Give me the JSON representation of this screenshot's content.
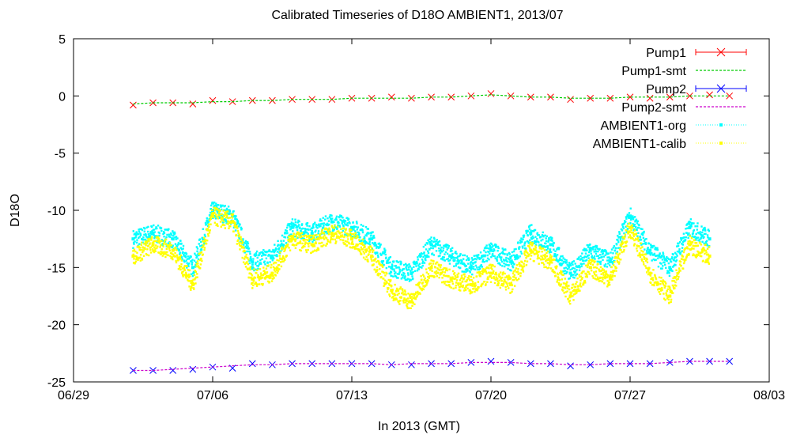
{
  "chart_data": {
    "type": "scatter",
    "title": "Calibrated Timeseries of D18O AMBIENT1, 2013/07",
    "xlabel": "In 2013 (GMT)",
    "ylabel": "D18O",
    "xlim": [
      "2013-06-29",
      "2013-08-03"
    ],
    "ylim": [
      -25,
      5
    ],
    "x_ticks": [
      "06/29",
      "07/06",
      "07/13",
      "07/20",
      "07/27",
      "08/03"
    ],
    "y_ticks": [
      5,
      0,
      -5,
      -10,
      -15,
      -20,
      -25
    ],
    "grid": false,
    "legend_position": "top-right",
    "colors": {
      "Pump1": "#ff0000",
      "Pump1-smt": "#00cc00",
      "Pump2": "#0000ff",
      "Pump2-smt": "#cc00cc",
      "AMBIENT1-org": "#00ffff",
      "AMBIENT1-calib": "#ffff00"
    },
    "series": [
      {
        "name": "Pump1",
        "marker": "x",
        "x": [
          "2013-07-02",
          "2013-07-03",
          "2013-07-04",
          "2013-07-05",
          "2013-07-06",
          "2013-07-07",
          "2013-07-08",
          "2013-07-09",
          "2013-07-10",
          "2013-07-11",
          "2013-07-12",
          "2013-07-13",
          "2013-07-14",
          "2013-07-15",
          "2013-07-16",
          "2013-07-17",
          "2013-07-18",
          "2013-07-19",
          "2013-07-20",
          "2013-07-21",
          "2013-07-22",
          "2013-07-23",
          "2013-07-24",
          "2013-07-25",
          "2013-07-26",
          "2013-07-27",
          "2013-07-28",
          "2013-07-29",
          "2013-07-30",
          "2013-07-31",
          "2013-08-01"
        ],
        "y": [
          -0.8,
          -0.6,
          -0.6,
          -0.7,
          -0.4,
          -0.5,
          -0.4,
          -0.4,
          -0.3,
          -0.3,
          -0.3,
          -0.2,
          -0.2,
          -0.1,
          -0.2,
          -0.1,
          -0.1,
          0.0,
          0.2,
          0.0,
          -0.1,
          -0.1,
          -0.3,
          -0.2,
          -0.2,
          -0.1,
          -0.2,
          -0.1,
          0.0,
          0.1,
          0.0
        ]
      },
      {
        "name": "Pump1-smt",
        "marker": "line",
        "x": [
          "2013-07-02",
          "2013-07-03",
          "2013-07-04",
          "2013-07-05",
          "2013-07-06",
          "2013-07-07",
          "2013-07-08",
          "2013-07-09",
          "2013-07-10",
          "2013-07-11",
          "2013-07-12",
          "2013-07-13",
          "2013-07-14",
          "2013-07-15",
          "2013-07-16",
          "2013-07-17",
          "2013-07-18",
          "2013-07-19",
          "2013-07-20",
          "2013-07-21",
          "2013-07-22",
          "2013-07-23",
          "2013-07-24",
          "2013-07-25",
          "2013-07-26",
          "2013-07-27",
          "2013-07-28",
          "2013-07-29",
          "2013-07-30",
          "2013-07-31",
          "2013-08-01"
        ],
        "y": [
          -0.7,
          -0.6,
          -0.6,
          -0.6,
          -0.5,
          -0.5,
          -0.4,
          -0.4,
          -0.3,
          -0.3,
          -0.3,
          -0.2,
          -0.2,
          -0.2,
          -0.2,
          -0.1,
          -0.1,
          0.0,
          0.1,
          0.0,
          -0.1,
          -0.1,
          -0.2,
          -0.2,
          -0.2,
          -0.1,
          -0.1,
          -0.1,
          0.0,
          0.0,
          0.0
        ]
      },
      {
        "name": "Pump2",
        "marker": "x",
        "x": [
          "2013-07-02",
          "2013-07-03",
          "2013-07-04",
          "2013-07-05",
          "2013-07-06",
          "2013-07-07",
          "2013-07-08",
          "2013-07-09",
          "2013-07-10",
          "2013-07-11",
          "2013-07-12",
          "2013-07-13",
          "2013-07-14",
          "2013-07-15",
          "2013-07-16",
          "2013-07-17",
          "2013-07-18",
          "2013-07-19",
          "2013-07-20",
          "2013-07-21",
          "2013-07-22",
          "2013-07-23",
          "2013-07-24",
          "2013-07-25",
          "2013-07-26",
          "2013-07-27",
          "2013-07-28",
          "2013-07-29",
          "2013-07-30",
          "2013-07-31",
          "2013-08-01"
        ],
        "y": [
          -24.0,
          -24.0,
          -24.0,
          -23.9,
          -23.7,
          -23.8,
          -23.4,
          -23.5,
          -23.4,
          -23.4,
          -23.4,
          -23.4,
          -23.4,
          -23.5,
          -23.5,
          -23.4,
          -23.4,
          -23.3,
          -23.2,
          -23.3,
          -23.4,
          -23.4,
          -23.6,
          -23.5,
          -23.4,
          -23.4,
          -23.4,
          -23.3,
          -23.2,
          -23.2,
          -23.2
        ]
      },
      {
        "name": "Pump2-smt",
        "marker": "line",
        "x": [
          "2013-07-02",
          "2013-07-03",
          "2013-07-04",
          "2013-07-05",
          "2013-07-06",
          "2013-07-07",
          "2013-07-08",
          "2013-07-09",
          "2013-07-10",
          "2013-07-11",
          "2013-07-12",
          "2013-07-13",
          "2013-07-14",
          "2013-07-15",
          "2013-07-16",
          "2013-07-17",
          "2013-07-18",
          "2013-07-19",
          "2013-07-20",
          "2013-07-21",
          "2013-07-22",
          "2013-07-23",
          "2013-07-24",
          "2013-07-25",
          "2013-07-26",
          "2013-07-27",
          "2013-07-28",
          "2013-07-29",
          "2013-07-30",
          "2013-07-31",
          "2013-08-01"
        ],
        "y": [
          -24.0,
          -24.0,
          -23.9,
          -23.8,
          -23.7,
          -23.6,
          -23.5,
          -23.5,
          -23.4,
          -23.4,
          -23.4,
          -23.4,
          -23.4,
          -23.5,
          -23.4,
          -23.4,
          -23.4,
          -23.3,
          -23.3,
          -23.3,
          -23.4,
          -23.4,
          -23.5,
          -23.5,
          -23.4,
          -23.4,
          -23.4,
          -23.3,
          -23.2,
          -23.2,
          -23.2
        ]
      },
      {
        "name": "AMBIENT1-org",
        "marker": "dots",
        "x": [
          "2013-07-02",
          "2013-07-03",
          "2013-07-04",
          "2013-07-05",
          "2013-07-06",
          "2013-07-07",
          "2013-07-08",
          "2013-07-09",
          "2013-07-10",
          "2013-07-11",
          "2013-07-12",
          "2013-07-13",
          "2013-07-14",
          "2013-07-15",
          "2013-07-16",
          "2013-07-17",
          "2013-07-18",
          "2013-07-19",
          "2013-07-20",
          "2013-07-21",
          "2013-07-22",
          "2013-07-23",
          "2013-07-24",
          "2013-07-25",
          "2013-07-26",
          "2013-07-27",
          "2013-07-28",
          "2013-07-29",
          "2013-07-30",
          "2013-07-31"
        ],
        "y": [
          -12.5,
          -12.0,
          -12.5,
          -15.0,
          -10.0,
          -10.5,
          -14.5,
          -14.0,
          -11.5,
          -12.0,
          -11.0,
          -11.5,
          -12.5,
          -15.0,
          -15.5,
          -13.0,
          -14.0,
          -15.0,
          -13.5,
          -14.5,
          -12.0,
          -13.0,
          -15.5,
          -13.5,
          -14.5,
          -10.5,
          -13.5,
          -15.0,
          -11.5,
          -12.5
        ]
      },
      {
        "name": "AMBIENT1-calib",
        "marker": "dots",
        "x": [
          "2013-07-02",
          "2013-07-03",
          "2013-07-04",
          "2013-07-05",
          "2013-07-06",
          "2013-07-07",
          "2013-07-08",
          "2013-07-09",
          "2013-07-10",
          "2013-07-11",
          "2013-07-12",
          "2013-07-13",
          "2013-07-14",
          "2013-07-15",
          "2013-07-16",
          "2013-07-17",
          "2013-07-18",
          "2013-07-19",
          "2013-07-20",
          "2013-07-21",
          "2013-07-22",
          "2013-07-23",
          "2013-07-24",
          "2013-07-25",
          "2013-07-26",
          "2013-07-27",
          "2013-07-28",
          "2013-07-29",
          "2013-07-30",
          "2013-07-31"
        ],
        "y": [
          -14.0,
          -13.0,
          -13.5,
          -16.5,
          -10.5,
          -11.0,
          -16.0,
          -15.5,
          -12.5,
          -13.0,
          -12.0,
          -12.5,
          -14.0,
          -17.0,
          -18.0,
          -15.0,
          -16.0,
          -16.5,
          -15.5,
          -16.5,
          -13.5,
          -14.5,
          -17.5,
          -15.0,
          -16.0,
          -11.5,
          -15.5,
          -17.5,
          -13.0,
          -14.0
        ]
      }
    ]
  }
}
